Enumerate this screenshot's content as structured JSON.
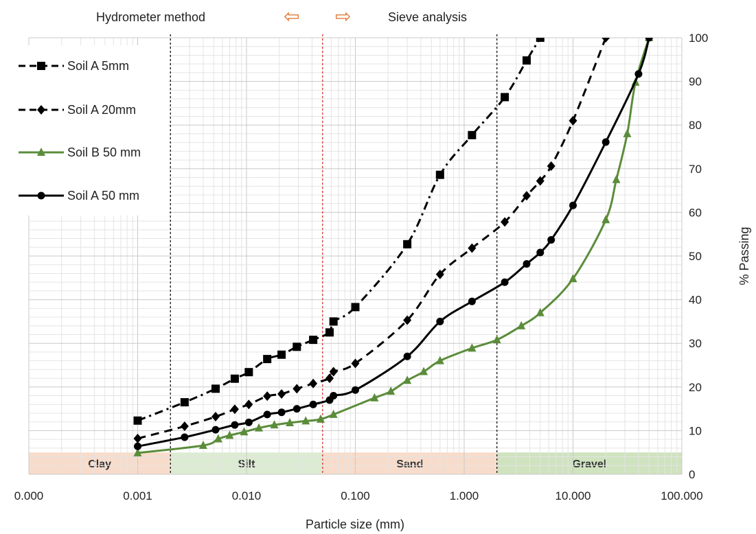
{
  "chart_data": {
    "type": "line",
    "title": "",
    "xlabel": "Particle size (mm)",
    "ylabel": "% Passing",
    "x_scale": "log",
    "xlim": [
      0.0001,
      100
    ],
    "ylim": [
      0,
      100
    ],
    "x_ticks": [
      0.0001,
      0.001,
      0.01,
      0.1,
      1,
      10,
      100
    ],
    "x_tick_labels": [
      "0.000",
      "0.001",
      "0.010",
      "0.100",
      "1.000",
      "10.000",
      "100.000"
    ],
    "y_ticks": [
      0,
      10,
      20,
      30,
      40,
      50,
      60,
      70,
      80,
      90,
      100
    ],
    "y_tick_labels": [
      "0",
      "10",
      "20",
      "30",
      "40",
      "50",
      "60",
      "70",
      "80",
      "90",
      "100"
    ],
    "y_axis_side": "right",
    "grid": true,
    "legend_position": "top-left",
    "annotations": {
      "left": "Hydrometer method",
      "right": "Sieve analysis",
      "arrow_left": "⇦",
      "arrow_right": "⇨",
      "arrow_color": "#e07b39"
    },
    "boundaries": [
      {
        "x": 0.002,
        "color": "#000000"
      },
      {
        "x": 0.05,
        "color": "#e02020"
      },
      {
        "x": 2,
        "color": "#000000"
      }
    ],
    "bands": [
      {
        "label": "Clay",
        "from": 0.0001,
        "to": 0.002,
        "color": "#f8dccb"
      },
      {
        "label": "Silt",
        "from": 0.002,
        "to": 0.05,
        "color": "#dcecd2"
      },
      {
        "label": "Sand",
        "from": 0.05,
        "to": 2,
        "color": "#f8dccb"
      },
      {
        "label": "Gravel",
        "from": 2,
        "to": 100,
        "color": "#cfe3bf"
      }
    ],
    "series": [
      {
        "name": "Soil A 5mm",
        "color": "#000000",
        "marker": "square",
        "dash": "dashdot",
        "x": [
          0.001,
          0.0027,
          0.0052,
          0.0078,
          0.0105,
          0.0155,
          0.021,
          0.029,
          0.041,
          0.058,
          0.063,
          0.1,
          0.3,
          0.6,
          1.18,
          2.36,
          3.75,
          5
        ],
        "y": [
          12.3,
          16.5,
          19.6,
          21.9,
          23.4,
          26.4,
          27.4,
          29.2,
          30.8,
          32.5,
          35.0,
          38.3,
          52.7,
          68.6,
          77.7,
          86.4,
          94.8,
          100
        ]
      },
      {
        "name": "Soil A 20mm",
        "color": "#000000",
        "marker": "diamond",
        "dash": "dash",
        "x": [
          0.001,
          0.0027,
          0.0052,
          0.0078,
          0.0105,
          0.0155,
          0.021,
          0.029,
          0.041,
          0.058,
          0.063,
          0.1,
          0.3,
          0.6,
          1.18,
          2.36,
          3.75,
          5,
          6.3,
          10,
          20
        ],
        "y": [
          8.2,
          11.0,
          13.2,
          14.9,
          16.0,
          17.9,
          18.4,
          19.6,
          20.8,
          22.0,
          23.5,
          25.4,
          35.3,
          45.8,
          51.8,
          57.8,
          63.8,
          67.2,
          70.6,
          81.0,
          100
        ]
      },
      {
        "name": "Soil B 50 mm",
        "color": "#5b8c3a",
        "marker": "triangle",
        "dash": "solid",
        "x": [
          0.001,
          0.004,
          0.0055,
          0.007,
          0.0095,
          0.013,
          0.018,
          0.025,
          0.035,
          0.048,
          0.063,
          0.15,
          0.212,
          0.3,
          0.425,
          0.6,
          1.18,
          2.0,
          3.35,
          5.0,
          10.0,
          20.0,
          25.0,
          31.5,
          37.5,
          50.0
        ],
        "y": [
          4.9,
          6.6,
          8.1,
          8.9,
          9.7,
          10.6,
          11.3,
          11.8,
          12.2,
          12.6,
          13.7,
          17.5,
          19.0,
          21.5,
          23.5,
          26.0,
          28.9,
          30.8,
          34.0,
          37.0,
          44.8,
          58.3,
          67.5,
          78.0,
          89.8,
          100
        ]
      },
      {
        "name": "Soil A 50 mm",
        "color": "#000000",
        "marker": "circle",
        "dash": "solid",
        "x": [
          0.001,
          0.0027,
          0.0052,
          0.0078,
          0.0105,
          0.0155,
          0.021,
          0.029,
          0.041,
          0.058,
          0.063,
          0.1,
          0.3,
          0.6,
          1.18,
          2.36,
          3.75,
          5,
          6.3,
          10,
          20,
          40,
          50
        ],
        "y": [
          6.4,
          8.5,
          10.2,
          11.3,
          11.9,
          13.7,
          14.2,
          15.0,
          16.0,
          17.0,
          18.0,
          19.3,
          27.0,
          35.0,
          39.6,
          44.0,
          48.2,
          50.8,
          53.7,
          61.6,
          76.1,
          91.7,
          100
        ]
      }
    ]
  }
}
